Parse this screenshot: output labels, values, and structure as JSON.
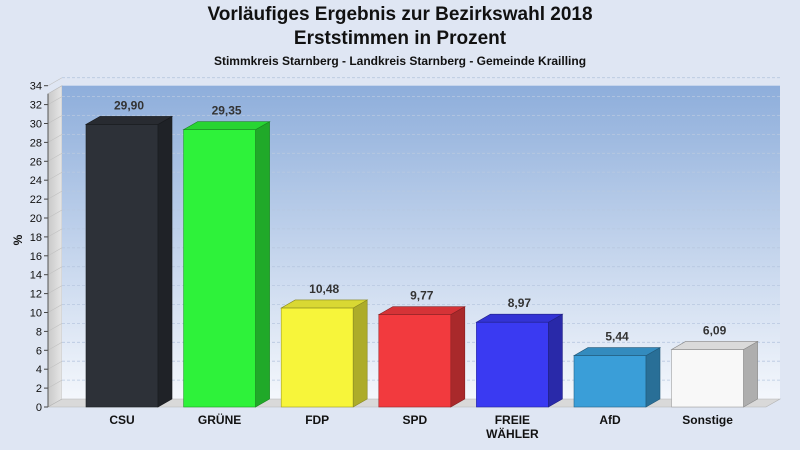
{
  "chart_data": {
    "type": "bar",
    "title": "Vorläufiges Ergebnis zur Bezirkswahl 2018",
    "title_line2": "Erststimmen in Prozent",
    "subtitle": "Stimmkreis Starnberg - Landkreis Starnberg - Gemeinde Krailling",
    "ylabel": "%",
    "xlabel": "",
    "ylim": [
      0,
      34
    ],
    "yticks": [
      "0",
      "2",
      "4",
      "6",
      "8",
      "10",
      "12",
      "14",
      "16",
      "18",
      "20",
      "22",
      "24",
      "26",
      "28",
      "30",
      "32",
      "34"
    ],
    "categories": [
      "CSU",
      "GRÜNE",
      "FDP",
      "SPD",
      "FREIE WÄHLER",
      "AfD",
      "Sonstige"
    ],
    "category_lines": [
      [
        "CSU"
      ],
      [
        "GRÜNE"
      ],
      [
        "FDP"
      ],
      [
        "SPD"
      ],
      [
        "FREIE",
        "WÄHLER"
      ],
      [
        "AfD"
      ],
      [
        "Sonstige"
      ]
    ],
    "values": [
      29.9,
      29.35,
      10.48,
      9.77,
      8.97,
      5.44,
      6.09
    ],
    "value_labels": [
      "29,90",
      "29,35",
      "10,48",
      "9,77",
      "8,97",
      "5,44",
      "6,09"
    ],
    "colors": [
      "#2d3138",
      "#2ef23a",
      "#f7f53a",
      "#f23a3e",
      "#3a3af2",
      "#3a9ed8",
      "#f8f8f8"
    ],
    "grid": true,
    "legend": "none"
  }
}
